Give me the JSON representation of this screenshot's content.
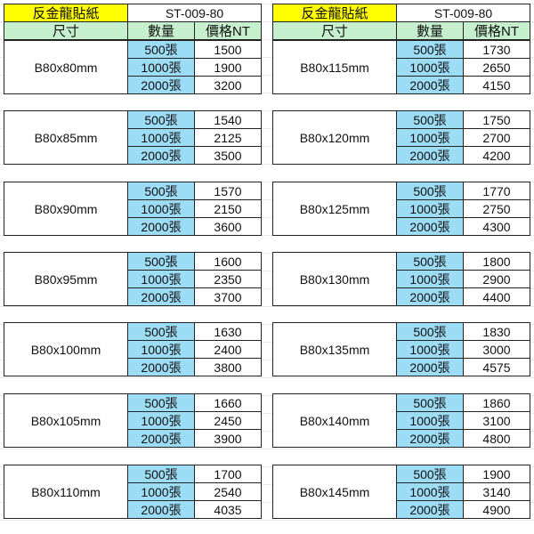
{
  "colors": {
    "title_bg": "#ffff00",
    "header_bg": "#c6efce",
    "qty_bg": "#9ddcf5"
  },
  "tables": [
    {
      "title": "反金龍貼紙",
      "code": "ST-009-80",
      "headers": {
        "size": "尺寸",
        "qty": "數量",
        "price": "價格NT"
      },
      "blocks": [
        {
          "size": "B80x80mm",
          "rows": [
            {
              "qty": "500張",
              "price": "1500"
            },
            {
              "qty": "1000張",
              "price": "1900"
            },
            {
              "qty": "2000張",
              "price": "3200"
            }
          ]
        },
        {
          "size": "B80x85mm",
          "rows": [
            {
              "qty": "500張",
              "price": "1540"
            },
            {
              "qty": "1000張",
              "price": "2125"
            },
            {
              "qty": "2000張",
              "price": "3500"
            }
          ]
        },
        {
          "size": "B80x90mm",
          "rows": [
            {
              "qty": "500張",
              "price": "1570"
            },
            {
              "qty": "1000張",
              "price": "2150"
            },
            {
              "qty": "2000張",
              "price": "3600"
            }
          ]
        },
        {
          "size": "B80x95mm",
          "rows": [
            {
              "qty": "500張",
              "price": "1600"
            },
            {
              "qty": "1000張",
              "price": "2350"
            },
            {
              "qty": "2000張",
              "price": "3700"
            }
          ]
        },
        {
          "size": "B80x100mm",
          "rows": [
            {
              "qty": "500張",
              "price": "1630"
            },
            {
              "qty": "1000張",
              "price": "2400"
            },
            {
              "qty": "2000張",
              "price": "3800"
            }
          ]
        },
        {
          "size": "B80x105mm",
          "rows": [
            {
              "qty": "500張",
              "price": "1660"
            },
            {
              "qty": "1000張",
              "price": "2450"
            },
            {
              "qty": "2000張",
              "price": "3900"
            }
          ]
        },
        {
          "size": "B80x110mm",
          "rows": [
            {
              "qty": "500張",
              "price": "1700"
            },
            {
              "qty": "1000張",
              "price": "2540"
            },
            {
              "qty": "2000張",
              "price": "4035"
            }
          ]
        }
      ]
    },
    {
      "title": "反金龍貼紙",
      "code": "ST-009-80",
      "headers": {
        "size": "尺寸",
        "qty": "數量",
        "price": "價格NT"
      },
      "blocks": [
        {
          "size": "B80x115mm",
          "rows": [
            {
              "qty": "500張",
              "price": "1730"
            },
            {
              "qty": "1000張",
              "price": "2650"
            },
            {
              "qty": "2000張",
              "price": "4150"
            }
          ]
        },
        {
          "size": "B80x120mm",
          "rows": [
            {
              "qty": "500張",
              "price": "1750"
            },
            {
              "qty": "1000張",
              "price": "2700"
            },
            {
              "qty": "2000張",
              "price": "4200"
            }
          ]
        },
        {
          "size": "B80x125mm",
          "rows": [
            {
              "qty": "500張",
              "price": "1770"
            },
            {
              "qty": "1000張",
              "price": "2750"
            },
            {
              "qty": "2000張",
              "price": "4300"
            }
          ]
        },
        {
          "size": "B80x130mm",
          "rows": [
            {
              "qty": "500張",
              "price": "1800"
            },
            {
              "qty": "1000張",
              "price": "2900"
            },
            {
              "qty": "2000張",
              "price": "4400"
            }
          ]
        },
        {
          "size": "B80x135mm",
          "rows": [
            {
              "qty": "500張",
              "price": "1830"
            },
            {
              "qty": "1000張",
              "price": "3000"
            },
            {
              "qty": "2000張",
              "price": "4575"
            }
          ]
        },
        {
          "size": "B80x140mm",
          "rows": [
            {
              "qty": "500張",
              "price": "1860"
            },
            {
              "qty": "1000張",
              "price": "3100"
            },
            {
              "qty": "2000張",
              "price": "4800"
            }
          ]
        },
        {
          "size": "B80x145mm",
          "rows": [
            {
              "qty": "500張",
              "price": "1900"
            },
            {
              "qty": "1000張",
              "price": "3140"
            },
            {
              "qty": "2000張",
              "price": "4900"
            }
          ]
        }
      ]
    }
  ]
}
